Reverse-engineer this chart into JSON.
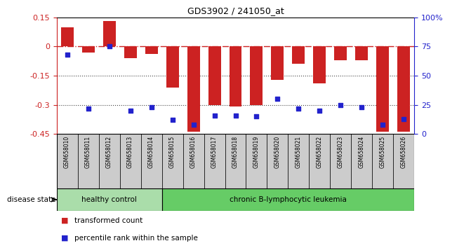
{
  "title": "GDS3902 / 241050_at",
  "samples": [
    "GSM658010",
    "GSM658011",
    "GSM658012",
    "GSM658013",
    "GSM658014",
    "GSM658015",
    "GSM658016",
    "GSM658017",
    "GSM658018",
    "GSM658019",
    "GSM658020",
    "GSM658021",
    "GSM658022",
    "GSM658023",
    "GSM658024",
    "GSM658025",
    "GSM658026"
  ],
  "bar_values": [
    0.1,
    -0.03,
    0.13,
    -0.06,
    -0.04,
    -0.21,
    -0.44,
    -0.3,
    -0.31,
    -0.3,
    -0.17,
    -0.09,
    -0.19,
    -0.07,
    -0.07,
    -0.44,
    -0.44
  ],
  "dot_values": [
    68,
    22,
    75,
    20,
    23,
    12,
    8,
    16,
    16,
    15,
    30,
    22,
    20,
    25,
    23,
    8,
    13
  ],
  "bar_color": "#cc2222",
  "dot_color": "#2222cc",
  "ylim_left": [
    -0.45,
    0.15
  ],
  "ylim_right": [
    0,
    100
  ],
  "yticks_left": [
    0.15,
    0,
    -0.15,
    -0.3,
    -0.45
  ],
  "ytick_labels_left": [
    "0.15",
    "0",
    "-0.15",
    "-0.3",
    "-0.45"
  ],
  "yticks_right": [
    0,
    25,
    50,
    75,
    100
  ],
  "ytick_labels_right": [
    "0",
    "25",
    "50",
    "75",
    "100%"
  ],
  "hline_y": 0,
  "hline_color": "#cc2222",
  "dotted_lines": [
    -0.15,
    -0.3
  ],
  "dotted_color": "#444444",
  "healthy_label": "healthy control",
  "leukemia_label": "chronic B-lymphocytic leukemia",
  "disease_state_label": "disease state",
  "legend_bar_label": "transformed count",
  "legend_dot_label": "percentile rank within the sample",
  "healthy_count": 5,
  "total_count": 17,
  "healthy_color": "#aaddaa",
  "leukemia_color": "#66cc66",
  "bar_width": 0.6,
  "tick_area_color": "#cccccc",
  "border_color": "#000000"
}
